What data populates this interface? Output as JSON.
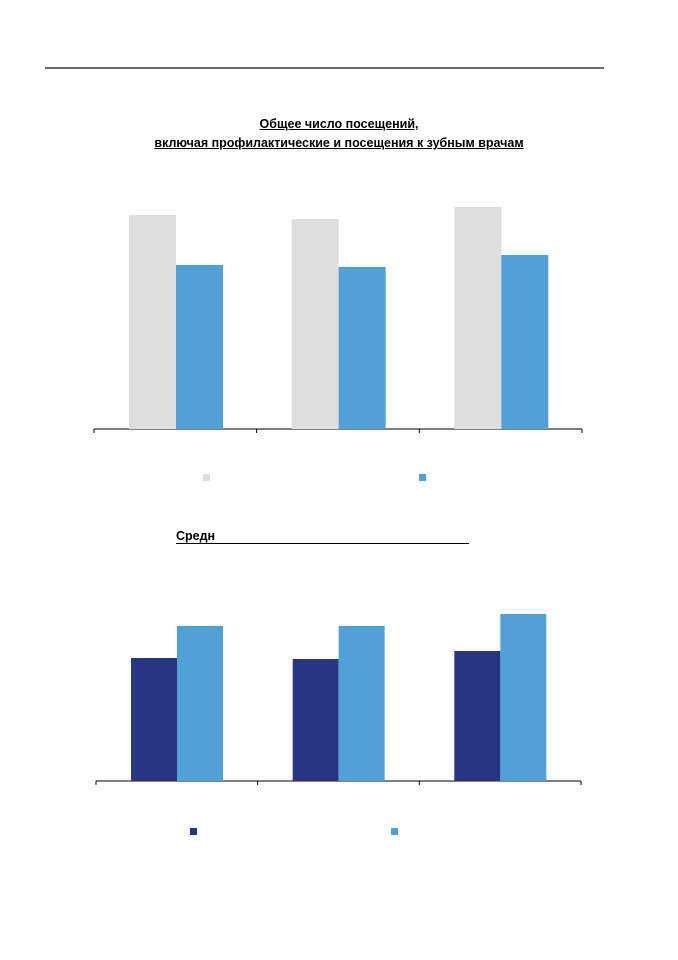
{
  "chart1": {
    "title_line1": "Общее число посещений,",
    "title_line2": "включая профилактические и посещения к зубным врачам"
  },
  "chart2": {
    "title": "Средн"
  },
  "colors": {
    "series_a_chart1": "#dedede",
    "series_b": "#52a0d8",
    "series_a_chart2": "#283583",
    "axis": "#000000",
    "rule": "#6b6b6b"
  },
  "chart_data": [
    {
      "type": "bar",
      "title": "Общее число посещений, включая профилактические и посещения к зубным врачам",
      "categories": [
        "",
        "",
        ""
      ],
      "series": [
        {
          "values": [
            214,
            210,
            222
          ]
        },
        {
          "values": [
            164,
            162,
            174
          ]
        }
      ],
      "ylim": [
        0,
        240
      ],
      "grid": false,
      "legend": "bottom"
    },
    {
      "type": "bar",
      "title": "Средн",
      "categories": [
        "",
        "",
        ""
      ],
      "series": [
        {
          "values": [
            123,
            122,
            130
          ]
        },
        {
          "values": [
            155,
            155,
            167
          ]
        }
      ],
      "ylim": [
        0,
        190
      ],
      "grid": false,
      "legend": "bottom"
    }
  ]
}
